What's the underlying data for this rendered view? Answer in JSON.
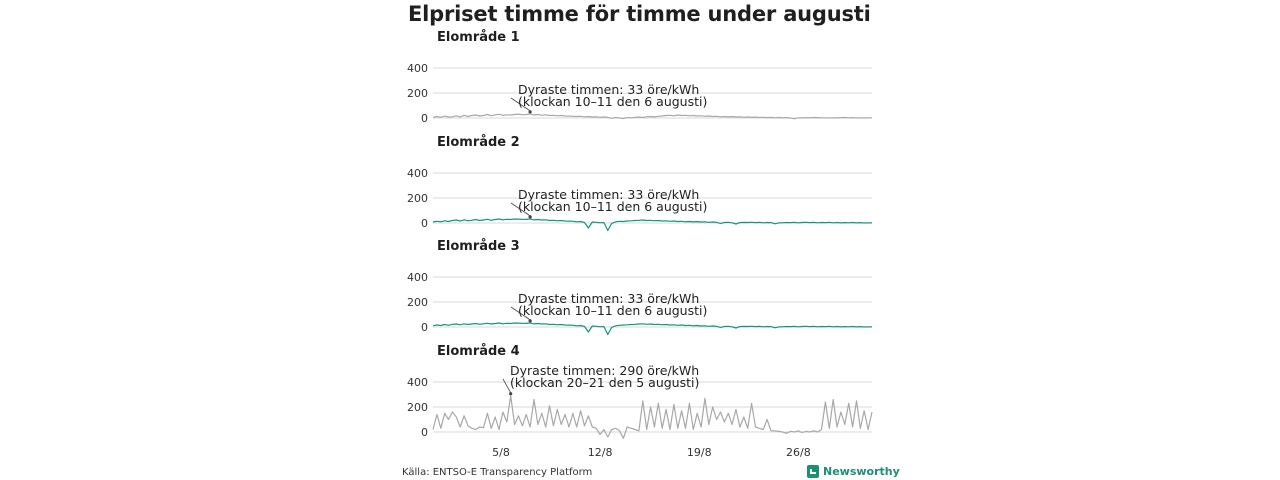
{
  "title": "Elpriset timme för timme under augusti",
  "source": "Källa: ENTSO-E Transparency Platform",
  "brand": {
    "name": "Newsworthy",
    "icon": "newsworthy-logo-icon"
  },
  "colors": {
    "gray": "#a8a8a8",
    "teal": "#15967c",
    "grid": "#d9d9d9"
  },
  "chart_data": {
    "type": "line",
    "x_ticks": [
      "5/8",
      "12/8",
      "19/8",
      "26/8"
    ],
    "y_ticks": [
      0,
      200,
      400
    ],
    "ylim": [
      -60,
      400
    ],
    "grid": true,
    "panels": [
      {
        "title": "Elområde 1",
        "color": "#a8a8a8",
        "annotation": {
          "line1": "Dyraste timmen: 33 öre/kWh",
          "line2": "(klockan 10–11 den 6 augusti)"
        },
        "values": [
          5,
          12,
          6,
          15,
          8,
          10,
          18,
          9,
          22,
          12,
          20,
          24,
          16,
          20,
          28,
          18,
          26,
          30,
          22,
          25,
          24,
          28,
          31,
          26,
          27,
          33,
          24,
          28,
          22,
          26,
          20,
          22,
          18,
          20,
          16,
          15,
          14,
          12,
          14,
          10,
          12,
          8,
          10,
          6,
          8,
          5,
          -2,
          4,
          0,
          -4,
          3,
          2,
          6,
          8,
          4,
          10,
          12,
          9,
          14,
          16,
          20,
          22,
          18,
          24,
          20,
          22,
          18,
          20,
          16,
          18,
          14,
          16,
          12,
          14,
          10,
          12,
          9,
          11,
          8,
          10,
          6,
          8,
          5,
          7,
          4,
          6,
          3,
          5,
          2,
          4,
          1,
          3,
          0,
          -6,
          2,
          1,
          3,
          2,
          4,
          3,
          2,
          1,
          0,
          2,
          1,
          3,
          4,
          2,
          3,
          1,
          2,
          0,
          1,
          2
        ]
      },
      {
        "title": "Elområde 2",
        "color": "#15967c",
        "annotation": {
          "line1": "Dyraste timmen: 33 öre/kWh",
          "line2": "(klockan 10–11 den 6 augusti)"
        },
        "values": [
          8,
          14,
          10,
          18,
          12,
          20,
          24,
          16,
          26,
          18,
          22,
          28,
          20,
          24,
          30,
          22,
          28,
          32,
          26,
          30,
          28,
          32,
          31,
          30,
          29,
          33,
          25,
          28,
          24,
          26,
          20,
          22,
          18,
          20,
          16,
          15,
          14,
          10,
          12,
          4,
          -40,
          8,
          6,
          2,
          4,
          -60,
          -2,
          10,
          14,
          12,
          16,
          18,
          20,
          22,
          24,
          20,
          22,
          18,
          20,
          16,
          18,
          14,
          16,
          12,
          14,
          10,
          12,
          9,
          11,
          8,
          10,
          6,
          8,
          5,
          -3,
          4,
          6,
          2,
          -8,
          3,
          5,
          4,
          6,
          3,
          5,
          2,
          4,
          3,
          -6,
          1,
          2,
          4,
          3,
          5,
          2,
          4,
          6,
          3,
          5,
          2,
          4,
          3,
          5,
          2,
          4,
          1,
          3,
          2,
          4,
          1,
          3,
          0,
          2,
          1
        ]
      },
      {
        "title": "Elområde 3",
        "color": "#15967c",
        "annotation": {
          "line1": "Dyraste timmen: 33 öre/kWh",
          "line2": "(klockan 10–11 den 6 augusti)"
        },
        "values": [
          10,
          16,
          12,
          20,
          14,
          22,
          24,
          18,
          26,
          20,
          24,
          28,
          22,
          26,
          30,
          24,
          28,
          32,
          26,
          30,
          28,
          32,
          31,
          30,
          29,
          33,
          25,
          28,
          24,
          26,
          20,
          22,
          18,
          20,
          16,
          15,
          14,
          10,
          12,
          4,
          -40,
          8,
          6,
          2,
          4,
          -60,
          -2,
          10,
          14,
          16,
          18,
          20,
          22,
          24,
          26,
          22,
          24,
          20,
          22,
          18,
          20,
          16,
          18,
          14,
          16,
          12,
          14,
          10,
          12,
          8,
          10,
          6,
          8,
          5,
          -3,
          4,
          6,
          2,
          -8,
          3,
          5,
          4,
          6,
          3,
          5,
          2,
          4,
          3,
          -6,
          1,
          2,
          4,
          3,
          5,
          2,
          4,
          6,
          3,
          5,
          2,
          4,
          3,
          5,
          2,
          4,
          1,
          3,
          2,
          4,
          1,
          3,
          0,
          2,
          1
        ]
      },
      {
        "title": "Elområde 4",
        "color": "#a8a8a8",
        "annotation": {
          "line1": "Dyraste timmen: 290 öre/kWh",
          "line2": "(klockan 20–21 den 5 augusti)"
        },
        "values": [
          20,
          140,
          30,
          150,
          100,
          160,
          120,
          40,
          130,
          50,
          30,
          20,
          40,
          35,
          150,
          30,
          120,
          20,
          160,
          80,
          290,
          60,
          130,
          50,
          140,
          40,
          260,
          60,
          150,
          40,
          210,
          50,
          180,
          60,
          140,
          40,
          150,
          40,
          170,
          50,
          130,
          40,
          30,
          -20,
          20,
          -40,
          20,
          30,
          10,
          -50,
          40,
          30,
          20,
          10,
          250,
          20,
          200,
          40,
          230,
          30,
          180,
          20,
          220,
          30,
          170,
          30,
          230,
          20,
          150,
          40,
          270,
          60,
          200,
          100,
          160,
          80,
          150,
          60,
          180,
          40,
          120,
          30,
          230,
          40,
          30,
          20,
          100,
          10,
          10,
          5,
          0,
          -10,
          5,
          0,
          10,
          -5,
          5,
          0,
          10,
          0,
          20,
          240,
          30,
          260,
          40,
          160,
          60,
          230,
          40,
          250,
          30,
          170,
          20,
          160
        ]
      }
    ]
  }
}
